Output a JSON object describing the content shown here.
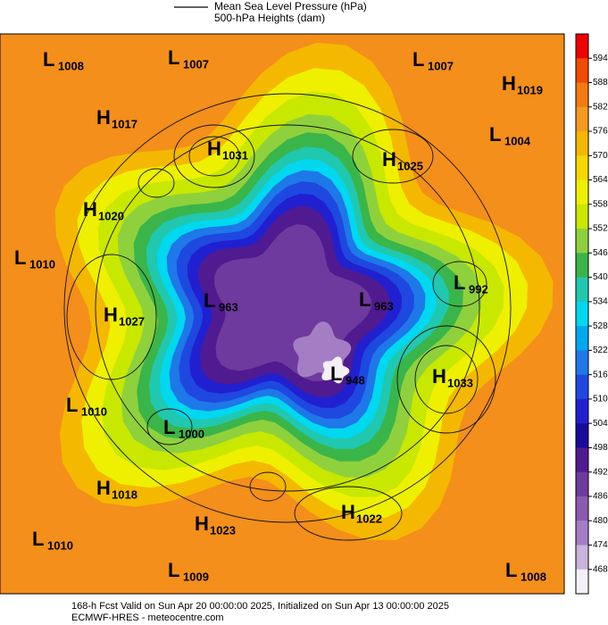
{
  "header": {
    "legend_line1": "Mean Sea Level Pressure (hPa)",
    "legend_line2": "500-hPa Heights (dam)"
  },
  "colorbar": {
    "ticks": [
      594,
      588,
      582,
      576,
      570,
      564,
      558,
      552,
      546,
      540,
      534,
      528,
      522,
      516,
      510,
      504,
      498,
      492,
      486,
      480,
      474,
      468
    ],
    "colors": [
      "#f00000",
      "#f24a00",
      "#f27a10",
      "#f59a20",
      "#f5b800",
      "#f5d800",
      "#eef000",
      "#c8e800",
      "#8fd13c",
      "#3ab54a",
      "#20c8b0",
      "#00d8f0",
      "#00a8f0",
      "#1e78e8",
      "#1e48e0",
      "#2020d0",
      "#1a0a9a",
      "#501a90",
      "#6e3a9e",
      "#8a5ab0",
      "#a47ec4",
      "#c8b4dc",
      "#f4f0f8"
    ]
  },
  "systems": [
    {
      "type": "L",
      "value": 1008
    },
    {
      "type": "L",
      "value": 1007
    },
    {
      "type": "L",
      "value": 1007
    },
    {
      "type": "H",
      "value": 1019
    },
    {
      "type": "H",
      "value": 1017
    },
    {
      "type": "H",
      "value": 1031
    },
    {
      "type": "L",
      "value": 1004
    },
    {
      "type": "H",
      "value": 1025
    },
    {
      "type": "H",
      "value": 1020
    },
    {
      "type": "L",
      "value": 1010
    },
    {
      "type": "L",
      "value": 992
    },
    {
      "type": "H",
      "value": 1027
    },
    {
      "type": "L",
      "value": 963
    },
    {
      "type": "L",
      "value": 963
    },
    {
      "type": "L",
      "value": 948
    },
    {
      "type": "H",
      "value": 1033
    },
    {
      "type": "L",
      "value": 1010
    },
    {
      "type": "L",
      "value": 1000
    },
    {
      "type": "H",
      "value": 1018
    },
    {
      "type": "H",
      "value": 1022
    },
    {
      "type": "H",
      "value": 1023
    },
    {
      "type": "L",
      "value": 1010
    },
    {
      "type": "L",
      "value": 1009
    },
    {
      "type": "L",
      "value": 1008
    }
  ],
  "footer": {
    "line1": "168-h Fcst Valid on Sun Apr 20 00:00:00 2025, Initialized on Sun Apr 13 00:00:00 2025",
    "line2": "ECMWF-HRES  - meteocentre.com"
  }
}
